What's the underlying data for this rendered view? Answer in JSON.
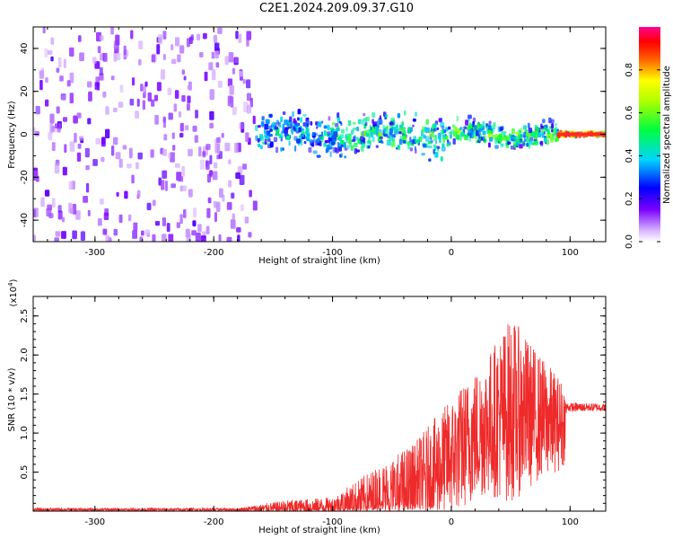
{
  "title": "C2E1.2024.209.09.37.G10",
  "chart_data": [
    {
      "type": "heatmap",
      "xlabel": "Height of straight line (km)",
      "ylabel": "Frequency (Hz)",
      "xlim": [
        -352,
        130
      ],
      "ylim": [
        -50,
        50
      ],
      "xticks": [
        -300,
        -200,
        -100,
        0,
        100
      ],
      "yticks": [
        -40,
        -20,
        0,
        20,
        40
      ],
      "colorbar": {
        "label": "Normalized spectral amplitude",
        "range": [
          0.0,
          1.0
        ],
        "ticks": [
          0.0,
          0.2,
          0.4,
          0.6,
          0.8
        ]
      },
      "regions": [
        {
          "x": [
            -352,
            -165
          ],
          "freq_spread": 50,
          "amplitude": 0.15
        },
        {
          "x": [
            -165,
            -100
          ],
          "freq_spread": 10,
          "amplitude": 0.3
        },
        {
          "x": [
            -100,
            0
          ],
          "freq_spread": 10,
          "amplitude": 0.4
        },
        {
          "x": [
            0,
            90
          ],
          "freq_spread": 6,
          "amplitude": 0.45
        },
        {
          "x": [
            90,
            130
          ],
          "freq_spread": 1,
          "amplitude": 0.9
        }
      ]
    },
    {
      "type": "line",
      "xlabel": "Height of straight line (km)",
      "ylabel": "SNR (10 * v/v)",
      "yscale_label": "(x10",
      "yscale_exp": "4",
      "yscale_close": ")",
      "xlim": [
        -352,
        130
      ],
      "ylim": [
        0,
        2.75
      ],
      "xticks": [
        -300,
        -200,
        -100,
        0,
        100
      ],
      "yticks": [
        0.5,
        1.0,
        1.5,
        2.0,
        2.5
      ],
      "yticklabels": [
        "0.5",
        "1.0",
        "1.5",
        "2.0",
        "2.5"
      ],
      "series": [
        {
          "color": "#ee2a2a",
          "envelope": [
            {
              "x": -352,
              "mean": 0.02,
              "amp": 0.02
            },
            {
              "x": -180,
              "mean": 0.02,
              "amp": 0.02
            },
            {
              "x": -140,
              "mean": 0.04,
              "amp": 0.1
            },
            {
              "x": -100,
              "mean": 0.06,
              "amp": 0.12
            },
            {
              "x": -60,
              "mean": 0.15,
              "amp": 0.45
            },
            {
              "x": -30,
              "mean": 0.3,
              "amp": 0.6
            },
            {
              "x": 0,
              "mean": 0.7,
              "amp": 0.75
            },
            {
              "x": 30,
              "mean": 1.1,
              "amp": 0.9
            },
            {
              "x": 50,
              "mean": 1.3,
              "amp": 1.2
            },
            {
              "x": 75,
              "mean": 1.2,
              "amp": 0.8
            },
            {
              "x": 95,
              "mean": 1.1,
              "amp": 0.55
            },
            {
              "x": 97,
              "mean": 1.33,
              "amp": 0.06
            },
            {
              "x": 130,
              "mean": 1.33,
              "amp": 0.05
            }
          ]
        }
      ]
    }
  ]
}
